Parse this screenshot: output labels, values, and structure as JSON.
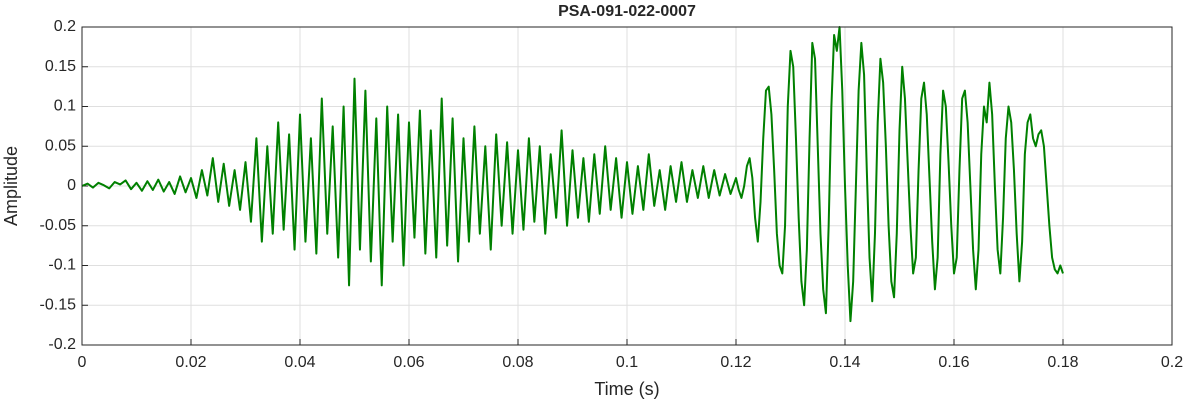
{
  "chart_data": {
    "type": "line",
    "title": "PSA-091-022-0007",
    "xlabel": "Time (s)",
    "ylabel": "Amplitude",
    "color": "#008000",
    "grid": true,
    "xlim": [
      0,
      0.2
    ],
    "xticks": [
      0,
      0.02,
      0.04,
      0.06,
      0.08,
      0.1,
      0.12,
      0.14,
      0.16,
      0.18,
      0.2
    ],
    "ylim": [
      -0.2,
      0.2
    ],
    "yticks": [
      -0.2,
      -0.15,
      -0.1,
      -0.05,
      0,
      0.05,
      0.1,
      0.15,
      0.2
    ],
    "x": [
      0,
      0.001,
      0.002,
      0.003,
      0.004,
      0.005,
      0.006,
      0.007,
      0.008,
      0.009,
      0.01,
      0.011,
      0.012,
      0.013,
      0.014,
      0.015,
      0.016,
      0.017,
      0.018,
      0.019,
      0.02,
      0.021,
      0.022,
      0.023,
      0.024,
      0.025,
      0.026,
      0.027,
      0.028,
      0.029,
      0.03,
      0.031,
      0.032,
      0.033,
      0.034,
      0.035,
      0.036,
      0.037,
      0.038,
      0.039,
      0.04,
      0.041,
      0.042,
      0.043,
      0.044,
      0.045,
      0.046,
      0.047,
      0.048,
      0.049,
      0.05,
      0.051,
      0.052,
      0.053,
      0.054,
      0.055,
      0.056,
      0.057,
      0.058,
      0.059,
      0.06,
      0.061,
      0.062,
      0.063,
      0.064,
      0.065,
      0.066,
      0.067,
      0.068,
      0.069,
      0.07,
      0.071,
      0.072,
      0.073,
      0.074,
      0.075,
      0.076,
      0.077,
      0.078,
      0.079,
      0.08,
      0.081,
      0.082,
      0.083,
      0.084,
      0.085,
      0.086,
      0.087,
      0.088,
      0.089,
      0.09,
      0.091,
      0.092,
      0.093,
      0.094,
      0.095,
      0.096,
      0.097,
      0.098,
      0.099,
      0.1,
      0.101,
      0.102,
      0.103,
      0.104,
      0.105,
      0.106,
      0.107,
      0.108,
      0.109,
      0.11,
      0.111,
      0.112,
      0.113,
      0.114,
      0.115,
      0.116,
      0.117,
      0.118,
      0.119,
      0.12,
      0.1205,
      0.121,
      0.1215,
      0.122,
      0.1225,
      0.123,
      0.1235,
      0.124,
      0.1245,
      0.125,
      0.1255,
      0.126,
      0.1265,
      0.127,
      0.1275,
      0.128,
      0.1285,
      0.129,
      0.1295,
      0.13,
      0.1305,
      0.131,
      0.1315,
      0.132,
      0.1325,
      0.133,
      0.1335,
      0.134,
      0.1345,
      0.135,
      0.1355,
      0.136,
      0.1365,
      0.137,
      0.1375,
      0.138,
      0.1385,
      0.139,
      0.1395,
      0.14,
      0.1405,
      0.141,
      0.1415,
      0.142,
      0.1425,
      0.143,
      0.1435,
      0.144,
      0.1445,
      0.145,
      0.1455,
      0.146,
      0.1465,
      0.147,
      0.1475,
      0.148,
      0.1485,
      0.149,
      0.1495,
      0.15,
      0.1505,
      0.151,
      0.1515,
      0.152,
      0.1525,
      0.153,
      0.1535,
      0.154,
      0.1545,
      0.155,
      0.1555,
      0.156,
      0.1565,
      0.157,
      0.1575,
      0.158,
      0.1585,
      0.159,
      0.1595,
      0.16,
      0.1605,
      0.161,
      0.1615,
      0.162,
      0.1625,
      0.163,
      0.1635,
      0.164,
      0.1645,
      0.165,
      0.1655,
      0.166,
      0.1665,
      0.167,
      0.1675,
      0.168,
      0.1685,
      0.169,
      0.1695,
      0.17,
      0.1705,
      0.171,
      0.1715,
      0.172,
      0.1725,
      0.173,
      0.1735,
      0.174,
      0.1745,
      0.175,
      0.1755,
      0.176,
      0.1765,
      0.177,
      0.1775,
      0.178,
      0.1785,
      0.179,
      0.1795,
      0.18
    ],
    "values": [
      0,
      0.003,
      -0.002,
      0.004,
      0.001,
      -0.003,
      0.005,
      0.002,
      0.007,
      -0.004,
      0.004,
      -0.006,
      0.006,
      -0.005,
      0.008,
      -0.007,
      0.005,
      -0.01,
      0.012,
      -0.008,
      0.01,
      -0.015,
      0.02,
      -0.012,
      0.035,
      -0.02,
      0.028,
      -0.025,
      0.02,
      -0.03,
      0.03,
      -0.045,
      0.06,
      -0.07,
      0.05,
      -0.06,
      0.08,
      -0.055,
      0.065,
      -0.08,
      0.09,
      -0.07,
      0.06,
      -0.085,
      0.11,
      -0.06,
      0.075,
      -0.09,
      0.1,
      -0.125,
      0.135,
      -0.08,
      0.12,
      -0.095,
      0.085,
      -0.125,
      0.1,
      -0.07,
      0.09,
      -0.1,
      0.08,
      -0.065,
      0.095,
      -0.085,
      0.07,
      -0.09,
      0.11,
      -0.075,
      0.085,
      -0.095,
      0.06,
      -0.07,
      0.075,
      -0.06,
      0.05,
      -0.08,
      0.065,
      -0.05,
      0.055,
      -0.06,
      0.045,
      -0.055,
      0.06,
      -0.045,
      0.05,
      -0.06,
      0.04,
      -0.04,
      0.07,
      -0.05,
      0.045,
      -0.04,
      0.035,
      -0.045,
      0.04,
      -0.035,
      0.05,
      -0.03,
      0.035,
      -0.04,
      0.03,
      -0.035,
      0.025,
      -0.03,
      0.04,
      -0.025,
      0.02,
      -0.03,
      0.025,
      -0.02,
      0.03,
      -0.02,
      0.02,
      -0.015,
      0.025,
      -0.015,
      0.02,
      -0.012,
      0.015,
      -0.01,
      0.01,
      -0.005,
      -0.015,
      0,
      0.025,
      0.035,
      0.01,
      -0.04,
      -0.07,
      -0.02,
      0.06,
      0.12,
      0.125,
      0.09,
      0.02,
      -0.06,
      -0.1,
      -0.11,
      -0.05,
      0.1,
      0.17,
      0.15,
      0.06,
      -0.04,
      -0.12,
      -0.15,
      -0.08,
      0.06,
      0.18,
      0.16,
      0.05,
      -0.06,
      -0.13,
      -0.16,
      -0.05,
      0.1,
      0.19,
      0.17,
      0.2,
      0.12,
      0,
      -0.1,
      -0.17,
      -0.12,
      0,
      0.12,
      0.18,
      0.14,
      0.02,
      -0.09,
      -0.145,
      -0.06,
      0.08,
      0.16,
      0.13,
      0.05,
      -0.05,
      -0.12,
      -0.14,
      -0.06,
      0.07,
      0.15,
      0.11,
      0.03,
      -0.05,
      -0.11,
      -0.09,
      0.02,
      0.11,
      0.13,
      0.09,
      0.01,
      -0.07,
      -0.13,
      -0.09,
      0.04,
      0.12,
      0.1,
      0.03,
      -0.05,
      -0.11,
      -0.09,
      0.02,
      0.11,
      0.12,
      0.08,
      0,
      -0.08,
      -0.13,
      -0.08,
      0.04,
      0.1,
      0.08,
      0.13,
      0.09,
      0,
      -0.08,
      -0.11,
      -0.04,
      0.06,
      0.1,
      0.08,
      0.02,
      -0.06,
      -0.12,
      -0.07,
      0.04,
      0.08,
      0.09,
      0.06,
      0.05,
      0.065,
      0.07,
      0.05,
      0,
      -0.05,
      -0.09,
      -0.105,
      -0.11,
      -0.1,
      -0.11
    ]
  }
}
